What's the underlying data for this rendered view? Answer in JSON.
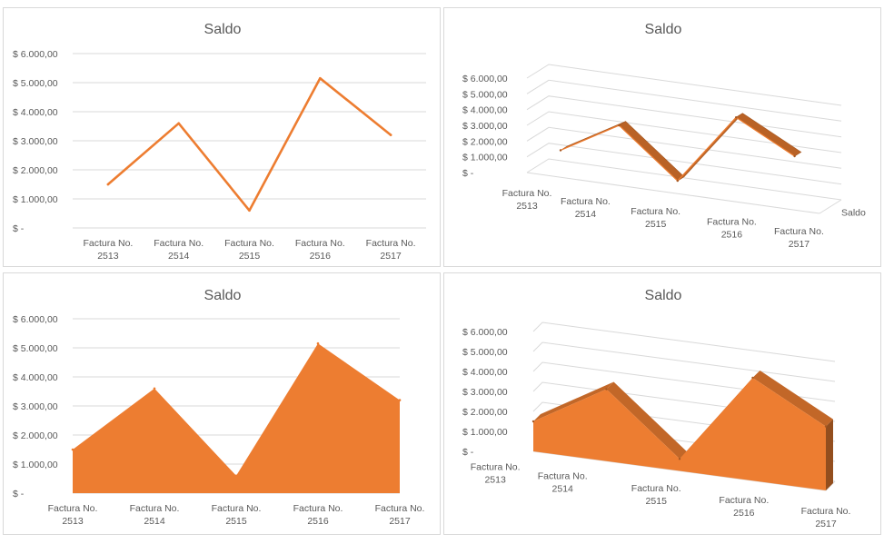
{
  "chart_data": [
    {
      "id": "line-2d",
      "type": "line",
      "title": "Saldo",
      "categories": [
        "Factura No. 2513",
        "Factura No. 2514",
        "Factura No. 2515",
        "Factura No. 2516",
        "Factura No. 2517"
      ],
      "series": [
        {
          "values": [
            1500,
            3600,
            600,
            5150,
            3200
          ]
        }
      ],
      "yticks": [
        "$ -",
        "$ 1.000,00",
        "$ 2.000,00",
        "$ 3.000,00",
        "$ 4.000,00",
        "$ 5.000,00",
        "$ 6.000,00"
      ],
      "ylim": [
        0,
        6000
      ],
      "grid": true,
      "color": "#ED7D31"
    },
    {
      "id": "line-3d",
      "type": "line",
      "title": "Saldo",
      "categories": [
        "Factura No. 2513",
        "Factura No. 2514",
        "Factura No. 2515",
        "Factura No. 2516",
        "Factura No. 2517"
      ],
      "series": [
        {
          "name": "Saldo",
          "values": [
            1500,
            3600,
            600,
            5150,
            3200
          ]
        }
      ],
      "yticks": [
        "$ -",
        "$ 1.000,00",
        "$ 2.000,00",
        "$ 3.000,00",
        "$ 4.000,00",
        "$ 5.000,00",
        "$ 6.000,00"
      ],
      "ylim": [
        0,
        6000
      ],
      "grid": true,
      "color": "#ED7D31"
    },
    {
      "id": "area-2d",
      "type": "area",
      "title": "Saldo",
      "categories": [
        "Factura No. 2513",
        "Factura No. 2514",
        "Factura No. 2515",
        "Factura No. 2516",
        "Factura No. 2517"
      ],
      "series": [
        {
          "values": [
            1500,
            3600,
            600,
            5150,
            3200
          ]
        }
      ],
      "yticks": [
        "$ -",
        "$ 1.000,00",
        "$ 2.000,00",
        "$ 3.000,00",
        "$ 4.000,00",
        "$ 5.000,00",
        "$ 6.000,00"
      ],
      "ylim": [
        0,
        6000
      ],
      "grid": true,
      "color": "#ED7D31"
    },
    {
      "id": "area-3d",
      "type": "area",
      "title": "Saldo",
      "categories": [
        "Factura No. 2513",
        "Factura No. 2514",
        "Factura No. 2515",
        "Factura No. 2516",
        "Factura No. 2517"
      ],
      "series": [
        {
          "values": [
            1500,
            3600,
            600,
            5150,
            3200
          ]
        }
      ],
      "yticks": [
        "$ -",
        "$ 1.000,00",
        "$ 2.000,00",
        "$ 3.000,00",
        "$ 4.000,00",
        "$ 5.000,00",
        "$ 6.000,00"
      ],
      "ylim": [
        0,
        6000
      ],
      "grid": true,
      "color": "#ED7D31"
    }
  ]
}
